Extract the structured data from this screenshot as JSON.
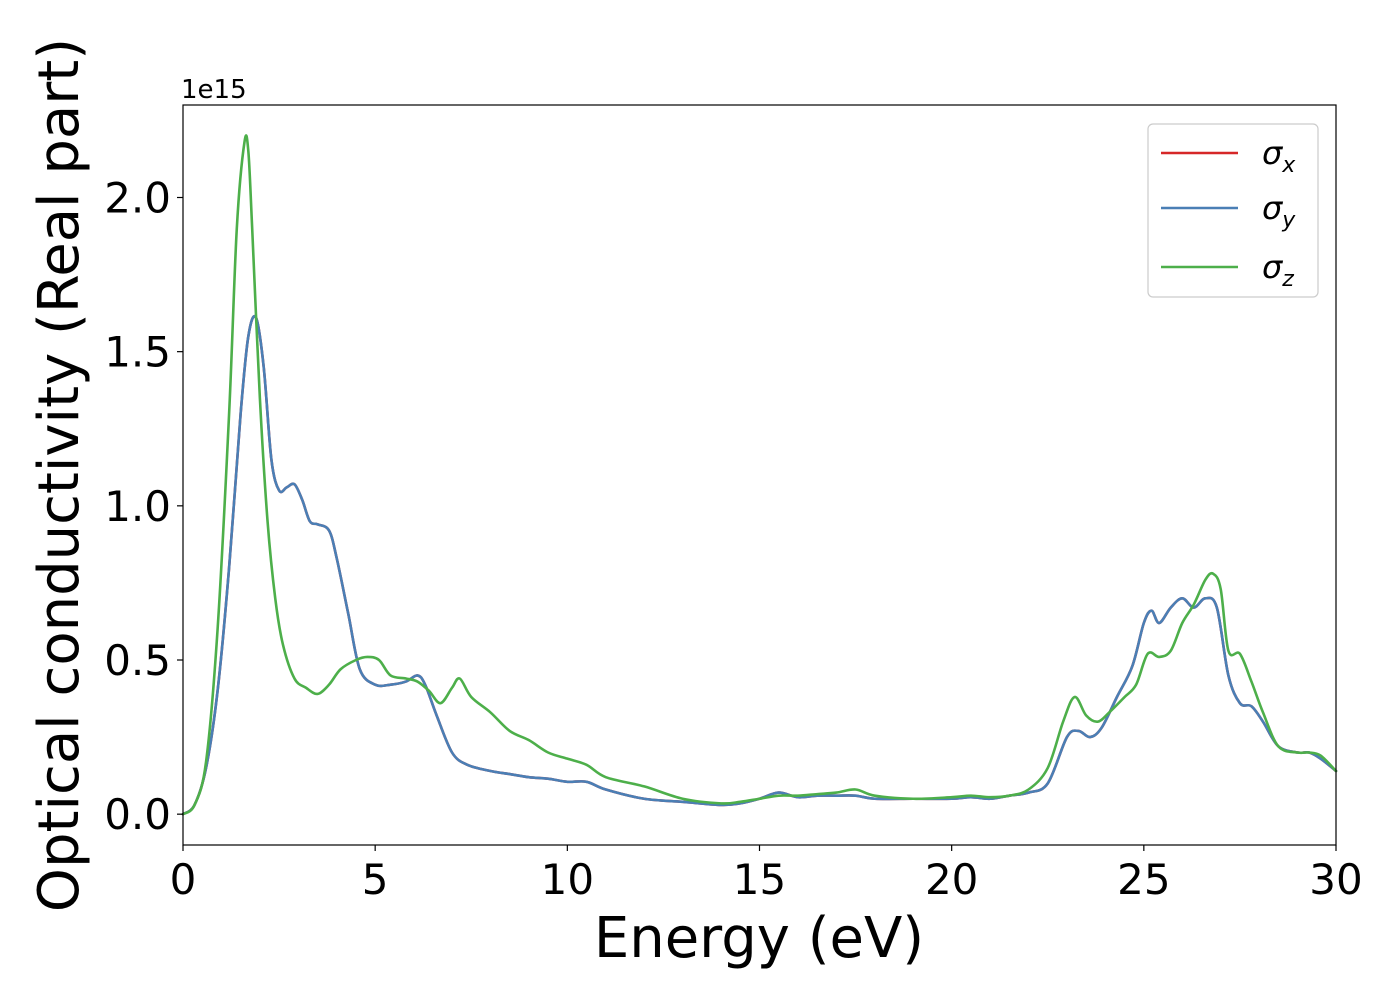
{
  "chart_data": {
    "type": "line",
    "xlabel": "Energy (eV)",
    "ylabel": "Optical conductivity (Real part)",
    "y_offset_label": "1e15",
    "xlim": [
      0,
      30
    ],
    "ylim": [
      -0.1,
      2.3
    ],
    "xticks": [
      0,
      5,
      10,
      15,
      20,
      25,
      30
    ],
    "xtick_labels": [
      "0",
      "5",
      "10",
      "15",
      "20",
      "25",
      "30"
    ],
    "yticks": [
      0.0,
      0.5,
      1.0,
      1.5,
      2.0
    ],
    "ytick_labels": [
      "0.0",
      "0.5",
      "1.0",
      "1.5",
      "2.0"
    ],
    "grid": false,
    "legend_position": "top-right",
    "series": [
      {
        "name": "σx",
        "symbol": "σ",
        "subscript": "x",
        "color": "#d62728",
        "x": [
          0,
          0.3,
          0.6,
          0.9,
          1.2,
          1.5,
          1.7,
          1.9,
          2.1,
          2.3,
          2.5,
          2.7,
          2.9,
          3.1,
          3.3,
          3.5,
          3.8,
          4.0,
          4.3,
          4.6,
          5.0,
          5.4,
          5.8,
          6.1,
          6.3,
          6.6,
          7.0,
          7.4,
          8.0,
          8.5,
          9.0,
          9.5,
          10.0,
          10.5,
          11.0,
          12.0,
          13.0,
          14.0,
          14.5,
          15.0,
          15.5,
          16.0,
          16.5,
          17.0,
          17.5,
          18.0,
          19.0,
          20.0,
          20.5,
          21.0,
          21.5,
          22.0,
          22.5,
          23.0,
          23.3,
          23.6,
          23.9,
          24.3,
          24.7,
          25.0,
          25.2,
          25.4,
          25.7,
          26.0,
          26.3,
          26.6,
          26.9,
          27.2,
          27.5,
          27.8,
          28.1,
          28.5,
          29.0,
          29.3,
          29.6,
          30.0
        ],
        "y": [
          0.0,
          0.03,
          0.15,
          0.4,
          0.8,
          1.3,
          1.55,
          1.61,
          1.45,
          1.15,
          1.05,
          1.06,
          1.07,
          1.02,
          0.95,
          0.94,
          0.92,
          0.83,
          0.65,
          0.47,
          0.42,
          0.42,
          0.43,
          0.45,
          0.42,
          0.32,
          0.2,
          0.16,
          0.14,
          0.13,
          0.12,
          0.115,
          0.105,
          0.105,
          0.08,
          0.05,
          0.04,
          0.03,
          0.035,
          0.05,
          0.07,
          0.055,
          0.06,
          0.06,
          0.06,
          0.05,
          0.05,
          0.05,
          0.055,
          0.05,
          0.06,
          0.07,
          0.1,
          0.25,
          0.27,
          0.25,
          0.28,
          0.38,
          0.48,
          0.62,
          0.66,
          0.62,
          0.67,
          0.7,
          0.67,
          0.7,
          0.67,
          0.45,
          0.36,
          0.35,
          0.3,
          0.22,
          0.2,
          0.2,
          0.18,
          0.14
        ]
      },
      {
        "name": "σy",
        "symbol": "σ",
        "subscript": "y",
        "color": "#4a7fb5",
        "x": [
          0,
          0.3,
          0.6,
          0.9,
          1.2,
          1.5,
          1.7,
          1.9,
          2.1,
          2.3,
          2.5,
          2.7,
          2.9,
          3.1,
          3.3,
          3.5,
          3.8,
          4.0,
          4.3,
          4.6,
          5.0,
          5.4,
          5.8,
          6.1,
          6.3,
          6.6,
          7.0,
          7.4,
          8.0,
          8.5,
          9.0,
          9.5,
          10.0,
          10.5,
          11.0,
          12.0,
          13.0,
          14.0,
          14.5,
          15.0,
          15.5,
          16.0,
          16.5,
          17.0,
          17.5,
          18.0,
          19.0,
          20.0,
          20.5,
          21.0,
          21.5,
          22.0,
          22.5,
          23.0,
          23.3,
          23.6,
          23.9,
          24.3,
          24.7,
          25.0,
          25.2,
          25.4,
          25.7,
          26.0,
          26.3,
          26.6,
          26.9,
          27.2,
          27.5,
          27.8,
          28.1,
          28.5,
          29.0,
          29.3,
          29.6,
          30.0
        ],
        "y": [
          0.0,
          0.03,
          0.15,
          0.4,
          0.8,
          1.3,
          1.55,
          1.61,
          1.45,
          1.15,
          1.05,
          1.06,
          1.07,
          1.02,
          0.95,
          0.94,
          0.92,
          0.83,
          0.65,
          0.47,
          0.42,
          0.42,
          0.43,
          0.45,
          0.42,
          0.32,
          0.2,
          0.16,
          0.14,
          0.13,
          0.12,
          0.115,
          0.105,
          0.105,
          0.08,
          0.05,
          0.04,
          0.03,
          0.035,
          0.05,
          0.07,
          0.055,
          0.06,
          0.06,
          0.06,
          0.05,
          0.05,
          0.05,
          0.055,
          0.05,
          0.06,
          0.07,
          0.1,
          0.25,
          0.27,
          0.25,
          0.28,
          0.38,
          0.48,
          0.62,
          0.66,
          0.62,
          0.67,
          0.7,
          0.67,
          0.7,
          0.67,
          0.45,
          0.36,
          0.35,
          0.3,
          0.22,
          0.2,
          0.2,
          0.18,
          0.14
        ]
      },
      {
        "name": "σz",
        "symbol": "σ",
        "subscript": "z",
        "color": "#4daf4a",
        "x": [
          0,
          0.3,
          0.6,
          0.9,
          1.2,
          1.4,
          1.6,
          1.7,
          1.8,
          2.0,
          2.2,
          2.4,
          2.6,
          2.9,
          3.2,
          3.5,
          3.8,
          4.1,
          4.5,
          4.8,
          5.1,
          5.4,
          5.8,
          6.1,
          6.4,
          6.7,
          7.0,
          7.2,
          7.5,
          8.0,
          8.5,
          9.0,
          9.5,
          10.0,
          10.5,
          11.0,
          12.0,
          13.0,
          14.0,
          14.5,
          15.0,
          15.5,
          16.0,
          16.5,
          17.0,
          17.5,
          18.0,
          19.0,
          20.0,
          20.5,
          21.0,
          21.5,
          22.0,
          22.5,
          22.9,
          23.2,
          23.5,
          23.8,
          24.1,
          24.5,
          24.8,
          25.1,
          25.4,
          25.7,
          26.0,
          26.3,
          26.6,
          26.8,
          27.0,
          27.2,
          27.5,
          27.8,
          28.1,
          28.5,
          29.0,
          29.3,
          29.6,
          30.0
        ],
        "y": [
          0.0,
          0.03,
          0.17,
          0.6,
          1.3,
          1.9,
          2.18,
          2.15,
          1.9,
          1.35,
          0.95,
          0.7,
          0.55,
          0.44,
          0.41,
          0.39,
          0.42,
          0.47,
          0.5,
          0.51,
          0.5,
          0.45,
          0.44,
          0.43,
          0.4,
          0.36,
          0.41,
          0.44,
          0.38,
          0.33,
          0.27,
          0.24,
          0.2,
          0.18,
          0.16,
          0.12,
          0.09,
          0.05,
          0.035,
          0.04,
          0.05,
          0.06,
          0.06,
          0.065,
          0.07,
          0.08,
          0.06,
          0.05,
          0.055,
          0.06,
          0.055,
          0.06,
          0.08,
          0.15,
          0.3,
          0.38,
          0.32,
          0.3,
          0.33,
          0.38,
          0.42,
          0.52,
          0.51,
          0.53,
          0.62,
          0.68,
          0.76,
          0.78,
          0.73,
          0.53,
          0.52,
          0.43,
          0.33,
          0.22,
          0.2,
          0.2,
          0.19,
          0.14
        ]
      }
    ]
  }
}
